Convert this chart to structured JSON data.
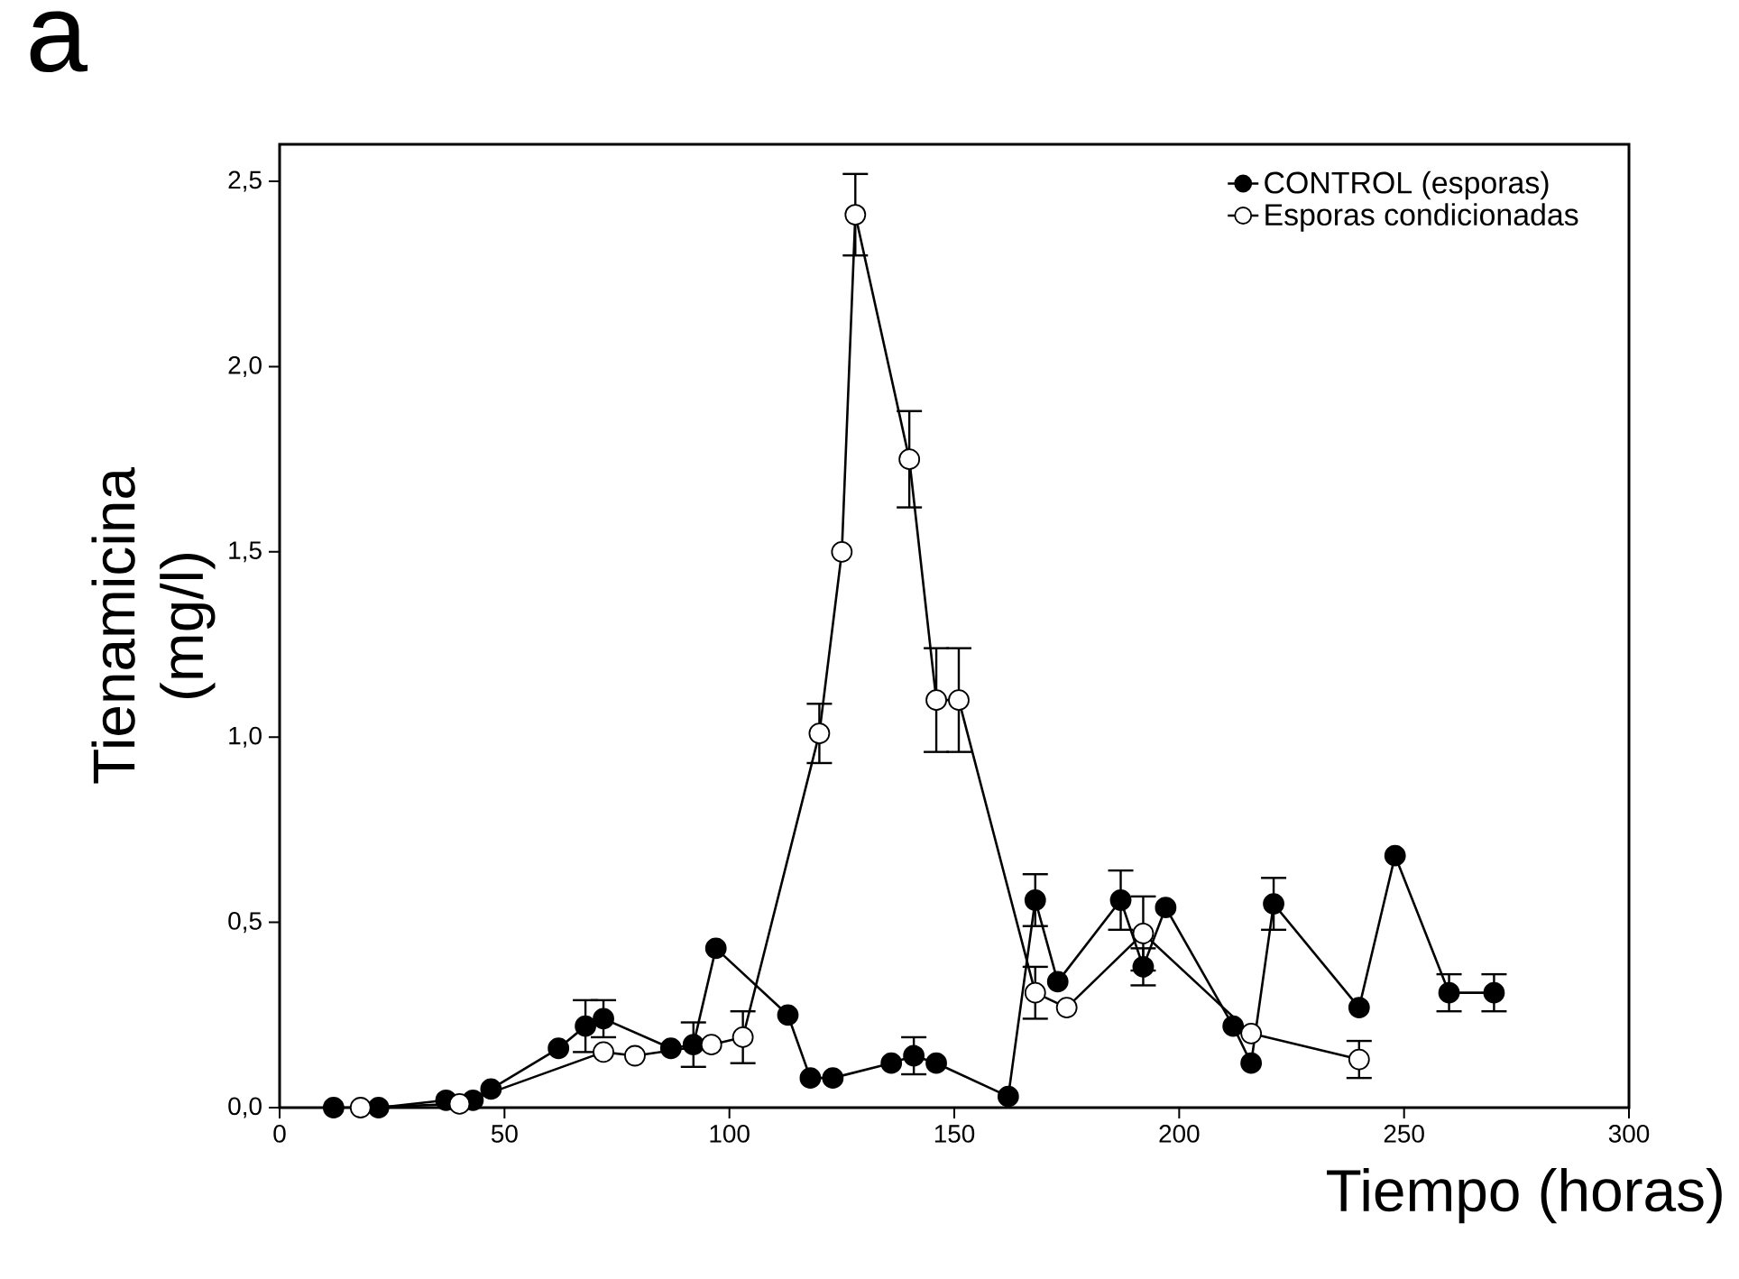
{
  "chart_data": {
    "type": "line",
    "title": "a",
    "xlabel": "Tiempo (horas)",
    "ylabel": "Tienamicina\n(mg/l)",
    "xlim": [
      0,
      300
    ],
    "xticks": [
      0,
      50,
      100,
      150,
      200,
      250,
      300
    ],
    "ylim": [
      0,
      2.6
    ],
    "yticks": [
      {
        "value": 0,
        "label": "0,0"
      },
      {
        "value": 0.5,
        "label": "0,5"
      },
      {
        "value": 1.0,
        "label": "1,0"
      },
      {
        "value": 1.5,
        "label": "1,5"
      },
      {
        "value": 2.0,
        "label": "2,0"
      },
      {
        "value": 2.5,
        "label": "2,5"
      }
    ],
    "legend": "top right",
    "marker": "circle",
    "grid": false,
    "series": [
      {
        "name": "CONTROL (esporas)",
        "color": "#000000",
        "x": [
          12,
          22,
          37,
          43,
          47,
          62,
          68,
          72,
          87,
          92,
          97,
          113,
          118,
          123,
          136,
          141,
          146,
          162,
          168,
          173,
          187,
          192,
          197,
          212,
          216,
          221,
          240,
          248,
          260,
          270
        ],
        "values": [
          0.0,
          0.0,
          0.02,
          0.02,
          0.05,
          0.16,
          0.22,
          0.24,
          0.16,
          0.17,
          0.43,
          0.25,
          0.08,
          0.08,
          0.12,
          0.14,
          0.12,
          0.03,
          0.56,
          0.34,
          0.56,
          0.38,
          0.54,
          0.22,
          0.12,
          0.55,
          0.27,
          0.68,
          0.31,
          0.31
        ],
        "errors": [
          null,
          null,
          null,
          null,
          null,
          null,
          0.07,
          0.05,
          null,
          0.06,
          null,
          null,
          null,
          null,
          null,
          0.05,
          null,
          null,
          0.07,
          null,
          0.08,
          0.05,
          null,
          null,
          null,
          0.07,
          null,
          null,
          0.05,
          0.05
        ]
      },
      {
        "name": "Esporas condicionadas",
        "color": "#ffffff",
        "x": [
          18,
          40,
          72,
          79,
          96,
          103,
          120,
          125,
          128,
          140,
          146,
          151,
          168,
          175,
          192,
          216,
          240
        ],
        "values": [
          0.0,
          0.01,
          0.15,
          0.14,
          0.17,
          0.19,
          1.01,
          1.5,
          2.41,
          1.75,
          1.1,
          1.1,
          0.31,
          0.27,
          0.47,
          0.2,
          0.13
        ],
        "errors": [
          null,
          null,
          null,
          null,
          null,
          0.07,
          0.08,
          null,
          0.11,
          0.13,
          0.14,
          0.14,
          0.07,
          null,
          0.1,
          null,
          0.05
        ]
      }
    ]
  }
}
